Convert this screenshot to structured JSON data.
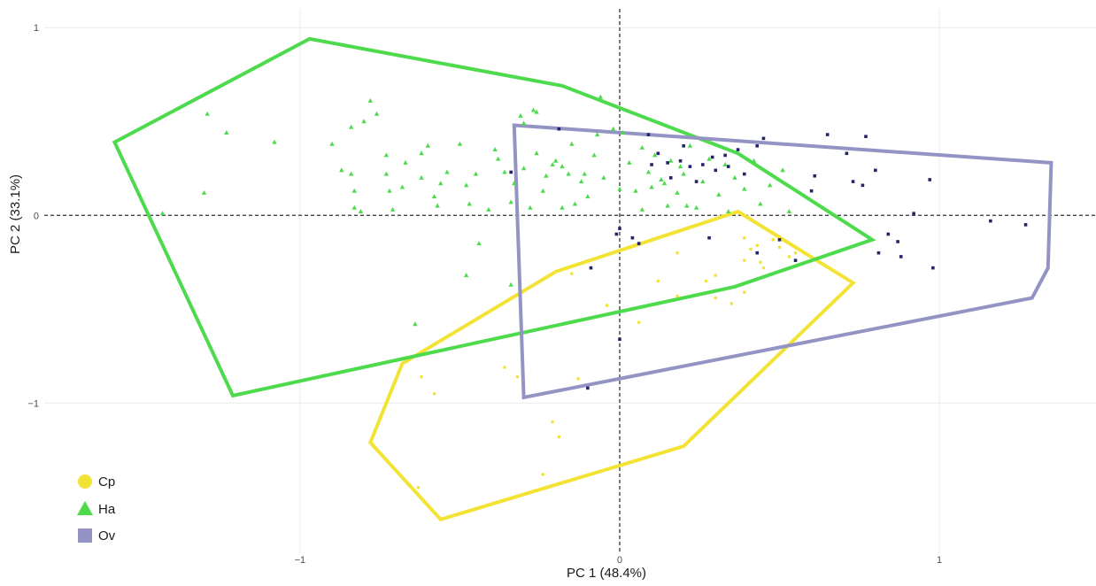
{
  "chart_data": {
    "type": "scatter",
    "title": "",
    "xlabel": "PC 1 (48.4%)",
    "ylabel": "PC 2 (33.1%)",
    "xlim": [
      -1.8,
      1.49
    ],
    "ylim": [
      -1.8,
      1.1
    ],
    "grid": true,
    "reference_lines": {
      "x": 0,
      "y": 0,
      "style": "dashed"
    },
    "x_ticks": [
      {
        "value": -1,
        "label": "−1"
      },
      {
        "value": 0,
        "label": "0"
      },
      {
        "value": 1,
        "label": "1"
      }
    ],
    "y_ticks": [
      {
        "value": 1,
        "label": "1"
      },
      {
        "value": 0,
        "label": "0"
      },
      {
        "value": -1,
        "label": "−1"
      }
    ],
    "legend_position": "bottom-left",
    "series": [
      {
        "name": "Cp",
        "marker": "circle",
        "color": "#f2e335",
        "hull": [
          [
            -0.78,
            -1.21
          ],
          [
            -0.56,
            -1.62
          ],
          [
            0.2,
            -1.23
          ],
          [
            0.73,
            -0.36
          ],
          [
            0.37,
            0.02
          ],
          [
            -0.2,
            -0.3
          ],
          [
            -0.68,
            -0.79
          ]
        ],
        "points": [
          [
            -0.62,
            -0.86
          ],
          [
            -0.58,
            -0.95
          ],
          [
            -0.36,
            -0.81
          ],
          [
            -0.32,
            -0.86
          ],
          [
            -0.21,
            -1.1
          ],
          [
            -0.13,
            -0.87
          ],
          [
            -0.19,
            -1.18
          ],
          [
            -0.24,
            -1.38
          ],
          [
            -0.63,
            -1.45
          ],
          [
            0.18,
            -0.2
          ],
          [
            0.27,
            -0.35
          ],
          [
            0.3,
            -0.32
          ],
          [
            0.35,
            -0.47
          ],
          [
            0.39,
            -0.12
          ],
          [
            0.39,
            -0.41
          ],
          [
            0.41,
            -0.18
          ],
          [
            0.43,
            -0.16
          ],
          [
            0.45,
            -0.28
          ],
          [
            0.48,
            -0.13
          ],
          [
            0.5,
            -0.17
          ],
          [
            0.53,
            -0.22
          ],
          [
            0.55,
            -0.2
          ],
          [
            0.18,
            -0.43
          ],
          [
            0.39,
            -0.24
          ],
          [
            0.44,
            -0.25
          ],
          [
            -0.04,
            -0.48
          ],
          [
            0.06,
            -0.57
          ],
          [
            -0.15,
            -0.31
          ],
          [
            0.12,
            -0.35
          ],
          [
            0.3,
            -0.44
          ]
        ]
      },
      {
        "name": "Ha",
        "marker": "triangle",
        "color": "#4ddb4d",
        "hull": [
          [
            -1.58,
            0.39
          ],
          [
            -0.97,
            0.94
          ],
          [
            -0.18,
            0.69
          ],
          [
            0.37,
            0.33
          ],
          [
            0.79,
            -0.13
          ],
          [
            0.36,
            -0.38
          ],
          [
            -1.21,
            -0.96
          ]
        ],
        "points": [
          [
            -1.43,
            0.01
          ],
          [
            -1.3,
            0.12
          ],
          [
            -1.29,
            0.54
          ],
          [
            -1.23,
            0.44
          ],
          [
            -1.08,
            0.39
          ],
          [
            -0.84,
            0.47
          ],
          [
            -0.84,
            0.22
          ],
          [
            -0.83,
            0.13
          ],
          [
            -0.83,
            0.04
          ],
          [
            -0.81,
            0.02
          ],
          [
            -0.8,
            0.5
          ],
          [
            -0.78,
            0.61
          ],
          [
            -0.76,
            0.54
          ],
          [
            -0.73,
            0.32
          ],
          [
            -0.73,
            0.22
          ],
          [
            -0.72,
            0.13
          ],
          [
            -0.71,
            0.03
          ],
          [
            -0.67,
            0.28
          ],
          [
            -0.62,
            0.2
          ],
          [
            -0.6,
            0.37
          ],
          [
            -0.58,
            0.1
          ],
          [
            -0.57,
            0.05
          ],
          [
            -0.54,
            0.23
          ],
          [
            -0.5,
            0.38
          ],
          [
            -0.48,
            0.16
          ],
          [
            -0.47,
            0.06
          ],
          [
            -0.45,
            0.22
          ],
          [
            -0.41,
            0.03
          ],
          [
            -0.38,
            0.3
          ],
          [
            -0.36,
            0.23
          ],
          [
            -0.34,
            0.07
          ],
          [
            -0.33,
            0.17
          ],
          [
            -0.3,
            0.49
          ],
          [
            -0.3,
            0.25
          ],
          [
            -0.28,
            0.04
          ],
          [
            -0.26,
            0.33
          ],
          [
            -0.24,
            0.13
          ],
          [
            -0.23,
            0.21
          ],
          [
            -0.2,
            0.29
          ],
          [
            -0.18,
            0.26
          ],
          [
            -0.18,
            0.04
          ],
          [
            -0.16,
            0.22
          ],
          [
            -0.14,
            0.06
          ],
          [
            -0.12,
            0.18
          ],
          [
            -0.1,
            0.1
          ],
          [
            -0.08,
            0.32
          ],
          [
            -0.07,
            0.43
          ],
          [
            -0.05,
            0.2
          ],
          [
            0.01,
            0.44
          ],
          [
            0.03,
            0.28
          ],
          [
            0.05,
            0.13
          ],
          [
            0.07,
            0.03
          ],
          [
            0.09,
            0.23
          ],
          [
            0.11,
            0.32
          ],
          [
            0.13,
            0.19
          ],
          [
            0.15,
            0.05
          ],
          [
            0.16,
            0.29
          ],
          [
            0.18,
            0.12
          ],
          [
            0.2,
            0.22
          ],
          [
            0.22,
            0.37
          ],
          [
            0.24,
            0.04
          ],
          [
            0.26,
            0.18
          ],
          [
            0.28,
            0.3
          ],
          [
            0.31,
            0.11
          ],
          [
            0.33,
            0.27
          ],
          [
            0.34,
            0.02
          ],
          [
            0.36,
            0.2
          ],
          [
            0.39,
            0.14
          ],
          [
            0.42,
            0.29
          ],
          [
            0.44,
            0.06
          ],
          [
            0.47,
            0.16
          ],
          [
            0.51,
            0.24
          ],
          [
            0.53,
            0.02
          ],
          [
            -0.68,
            0.15
          ],
          [
            -0.62,
            0.33
          ],
          [
            -0.56,
            0.17
          ],
          [
            -0.48,
            -0.32
          ],
          [
            -0.44,
            -0.15
          ],
          [
            -0.34,
            -0.37
          ],
          [
            -0.64,
            -0.58
          ],
          [
            -0.9,
            0.38
          ],
          [
            -0.87,
            0.24
          ],
          [
            -0.39,
            0.35
          ],
          [
            -0.27,
            0.56
          ],
          [
            -0.06,
            0.63
          ],
          [
            -0.02,
            0.46
          ],
          [
            0.19,
            0.26
          ],
          [
            0.14,
            0.17
          ],
          [
            0.07,
            0.36
          ],
          [
            -0.15,
            0.38
          ],
          [
            -0.26,
            0.55
          ],
          [
            -0.31,
            0.53
          ],
          [
            -0.21,
            0.27
          ],
          [
            -0.11,
            0.22
          ],
          [
            0.0,
            0.14
          ],
          [
            0.1,
            0.15
          ],
          [
            0.21,
            0.05
          ]
        ]
      },
      {
        "name": "Ov",
        "marker": "square",
        "color": "#9494c4",
        "hull": [
          [
            -0.33,
            0.48
          ],
          [
            1.35,
            0.28
          ],
          [
            1.34,
            -0.28
          ],
          [
            1.29,
            -0.44
          ],
          [
            -0.3,
            -0.97
          ]
        ],
        "points": [
          [
            -0.19,
            0.46
          ],
          [
            -0.09,
            -0.28
          ],
          [
            -0.01,
            -0.1
          ],
          [
            0.0,
            -0.07
          ],
          [
            0.0,
            -0.66
          ],
          [
            0.04,
            -0.12
          ],
          [
            0.06,
            -0.15
          ],
          [
            0.1,
            0.27
          ],
          [
            0.15,
            0.28
          ],
          [
            0.19,
            0.29
          ],
          [
            0.22,
            0.26
          ],
          [
            0.26,
            0.27
          ],
          [
            0.29,
            0.31
          ],
          [
            0.33,
            0.32
          ],
          [
            0.37,
            0.35
          ],
          [
            0.45,
            0.41
          ],
          [
            0.43,
            0.37
          ],
          [
            0.39,
            0.22
          ],
          [
            0.34,
            0.26
          ],
          [
            0.3,
            0.24
          ],
          [
            0.24,
            0.18
          ],
          [
            0.16,
            0.2
          ],
          [
            0.28,
            -0.12
          ],
          [
            0.43,
            -0.2
          ],
          [
            0.5,
            -0.13
          ],
          [
            0.55,
            -0.24
          ],
          [
            0.6,
            0.13
          ],
          [
            0.61,
            0.21
          ],
          [
            0.65,
            0.43
          ],
          [
            0.71,
            0.33
          ],
          [
            0.73,
            0.18
          ],
          [
            0.76,
            0.16
          ],
          [
            0.77,
            0.42
          ],
          [
            0.8,
            0.24
          ],
          [
            0.81,
            -0.2
          ],
          [
            0.84,
            -0.1
          ],
          [
            0.87,
            -0.14
          ],
          [
            0.88,
            -0.22
          ],
          [
            0.92,
            0.01
          ],
          [
            0.97,
            0.19
          ],
          [
            0.98,
            -0.28
          ],
          [
            1.16,
            -0.03
          ],
          [
            1.27,
            -0.05
          ],
          [
            -0.1,
            -0.92
          ],
          [
            -0.34,
            0.23
          ],
          [
            0.09,
            0.43
          ],
          [
            0.12,
            0.33
          ],
          [
            0.2,
            0.37
          ]
        ]
      }
    ]
  }
}
